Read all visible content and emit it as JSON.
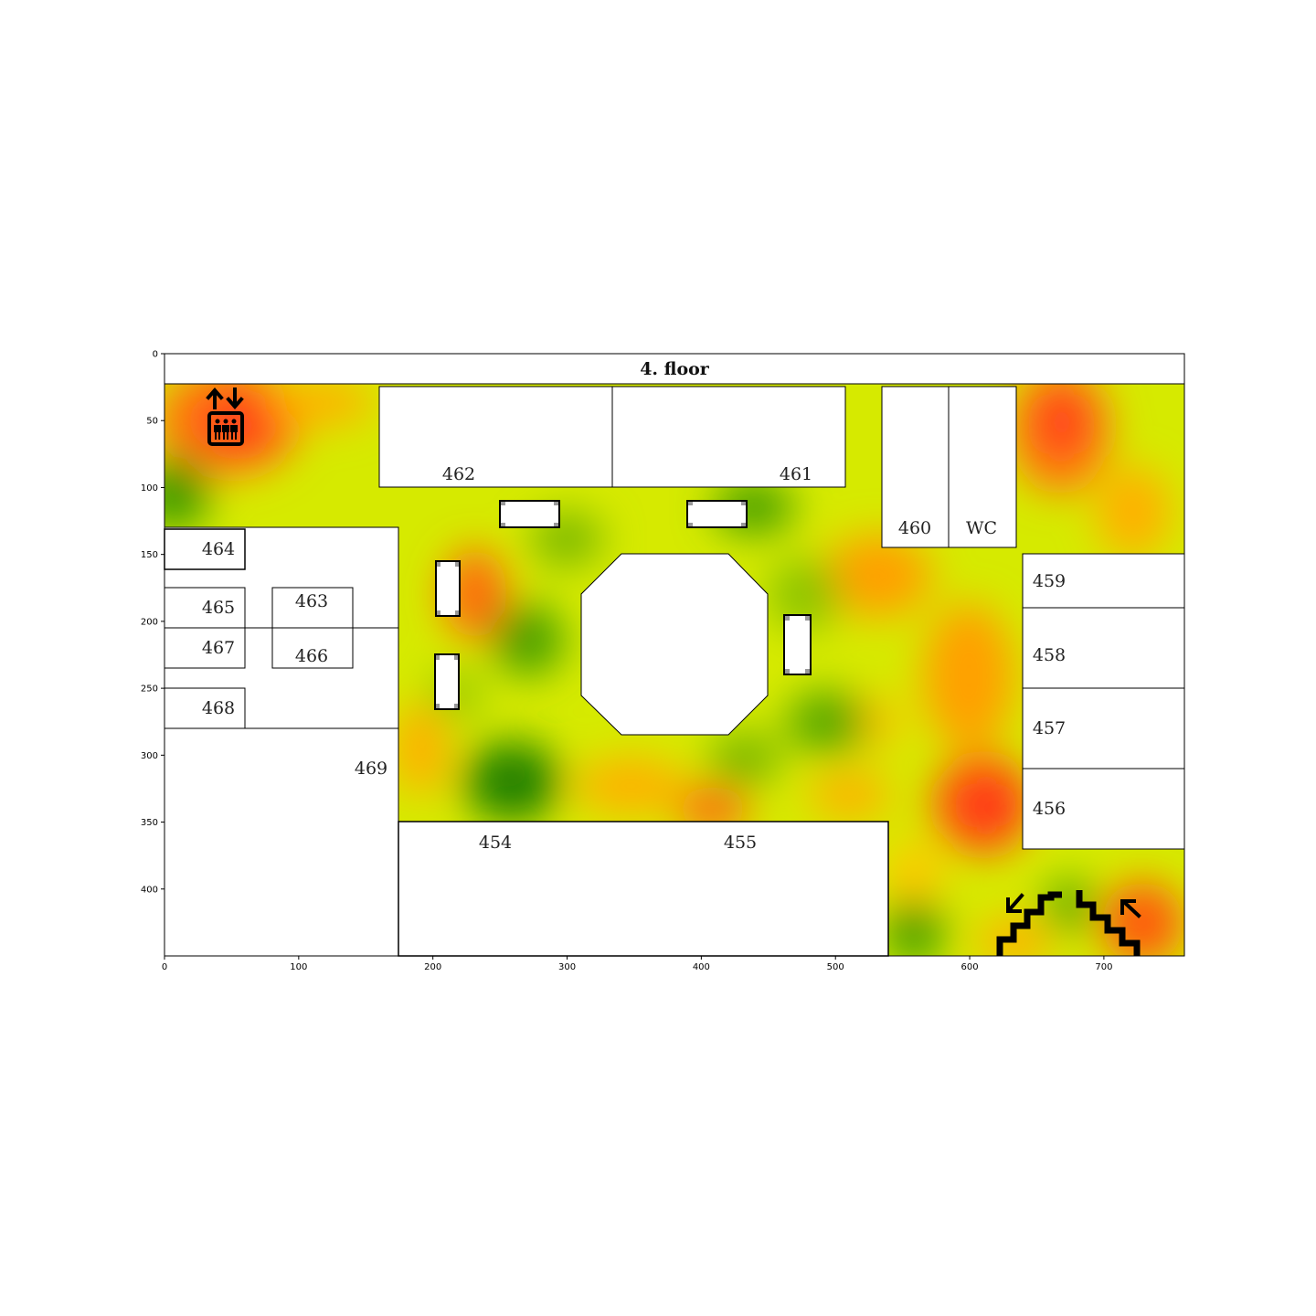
{
  "title": "4. floor",
  "axes": {
    "x_ticks": [
      "0",
      "100",
      "200",
      "300",
      "400",
      "500",
      "600",
      "700"
    ],
    "y_ticks": [
      "0",
      "50",
      "100",
      "150",
      "200",
      "250",
      "300",
      "350",
      "400"
    ]
  },
  "rooms": {
    "r462": "462",
    "r461": "461",
    "r460": "460",
    "wc": "WC",
    "r464": "464",
    "r465": "465",
    "r463": "463",
    "r467": "467",
    "r466": "466",
    "r468": "468",
    "r469": "469",
    "r459": "459",
    "r458": "458",
    "r457": "457",
    "r456": "456",
    "r454": "454",
    "r455": "455"
  },
  "icons": {
    "elevator": "elevator-icon",
    "stairs": "stairs-icon"
  },
  "colors": {
    "heat_low": "#2e8b00",
    "heat_mid": "#d8ec00",
    "heat_warm": "#ffa500",
    "heat_high": "#ff3a1a",
    "wall": "#000000"
  },
  "chart_data": {
    "type": "heatmap",
    "title": "4. floor",
    "xlim": [
      0,
      760
    ],
    "ylim": [
      450,
      0
    ],
    "xticks": [
      0,
      100,
      200,
      300,
      400,
      500,
      600,
      700
    ],
    "yticks": [
      0,
      50,
      100,
      150,
      200,
      250,
      300,
      350,
      400
    ],
    "colormap": "green-yellow-red"
  }
}
